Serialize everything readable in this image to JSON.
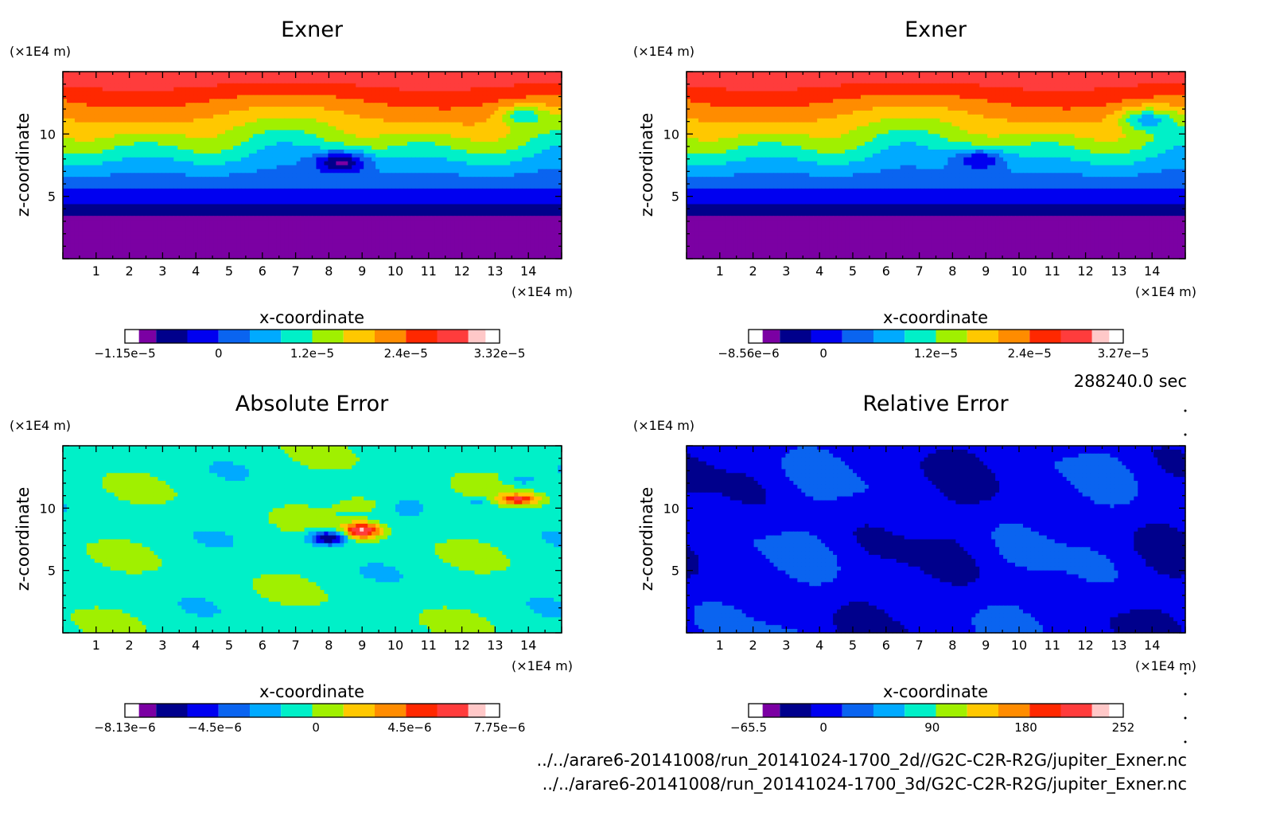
{
  "figure": {
    "time_label": "288240.0 sec",
    "file_paths": [
      "../../arare6-20141008/run_20141024-1700_2d//G2C-C2R-R2G/jupiter_Exner.nc",
      "../../arare6-20141008/run_20141024-1700_3d/G2C-C2R-R2G/jupiter_Exner.nc"
    ]
  },
  "colors": {
    "palette": [
      "#7b00a3",
      "#00008c",
      "#0000f0",
      "#0a64f0",
      "#00aaff",
      "#00f0c8",
      "#a0f000",
      "#ffc800",
      "#ff8c00",
      "#ff2800",
      "#ff3c3c",
      "#ffc8c8"
    ]
  },
  "chart_data": [
    {
      "type": "heatmap",
      "title": "Exner",
      "xlabel": "x-coordinate",
      "ylabel": "z-coordinate",
      "x_unit": "(×1E4 m)",
      "z_unit": "(×1E4 m)",
      "xlim": [
        0,
        15
      ],
      "ylim": [
        0,
        15
      ],
      "xticks": [
        1,
        2,
        3,
        4,
        5,
        6,
        7,
        8,
        9,
        10,
        11,
        12,
        13,
        14
      ],
      "yticks": [
        5,
        10
      ],
      "colorbar": {
        "levels": 12,
        "labels": [
          "−1.15e−5",
          "0",
          "1.2e−5",
          "2.4e−5",
          "3.32e−5"
        ],
        "positions": [
          0,
          0.25,
          0.5,
          0.75,
          1
        ]
      },
      "field": "exner_2d"
    },
    {
      "type": "heatmap",
      "title": "Exner",
      "xlabel": "x-coordinate",
      "ylabel": "z-coordinate",
      "x_unit": "(×1E4 m)",
      "z_unit": "(×1E4 m)",
      "xlim": [
        0,
        15
      ],
      "ylim": [
        0,
        15
      ],
      "xticks": [
        1,
        2,
        3,
        4,
        5,
        6,
        7,
        8,
        9,
        10,
        11,
        12,
        13,
        14
      ],
      "yticks": [
        5,
        10
      ],
      "colorbar": {
        "levels": 12,
        "labels": [
          "−8.56e−6",
          "0",
          "1.2e−5",
          "2.4e−5",
          "3.27e−5"
        ],
        "positions": [
          0,
          0.2,
          0.5,
          0.75,
          1
        ]
      },
      "field": "exner_3d"
    },
    {
      "type": "heatmap",
      "title": "Absolute Error",
      "xlabel": "x-coordinate",
      "ylabel": "z-coordinate",
      "x_unit": "(×1E4 m)",
      "z_unit": "(×1E4 m)",
      "xlim": [
        0,
        15
      ],
      "ylim": [
        0,
        15
      ],
      "xticks": [
        1,
        2,
        3,
        4,
        5,
        6,
        7,
        8,
        9,
        10,
        11,
        12,
        13,
        14
      ],
      "yticks": [
        5,
        10
      ],
      "colorbar": {
        "levels": 12,
        "labels": [
          "−8.13e−6",
          "−4.5e−6",
          "0",
          "4.5e−6",
          "7.75e−6"
        ],
        "positions": [
          0,
          0.24,
          0.51,
          0.76,
          1
        ]
      },
      "field": "abs_error"
    },
    {
      "type": "heatmap",
      "title": "Relative Error",
      "xlabel": "x-coordinate",
      "ylabel": "z-coordinate",
      "x_unit": "(×1E4 m)",
      "z_unit": "(×1E4 m)",
      "xlim": [
        0,
        15
      ],
      "ylim": [
        0,
        15
      ],
      "xticks": [
        1,
        2,
        3,
        4,
        5,
        6,
        7,
        8,
        9,
        10,
        11,
        12,
        13,
        14
      ],
      "yticks": [
        5,
        10
      ],
      "colorbar": {
        "levels": 12,
        "labels": [
          "−65.5",
          "0",
          "90",
          "180",
          "252"
        ],
        "positions": [
          0,
          0.2,
          0.49,
          0.74,
          1
        ]
      },
      "field": "rel_error"
    }
  ]
}
